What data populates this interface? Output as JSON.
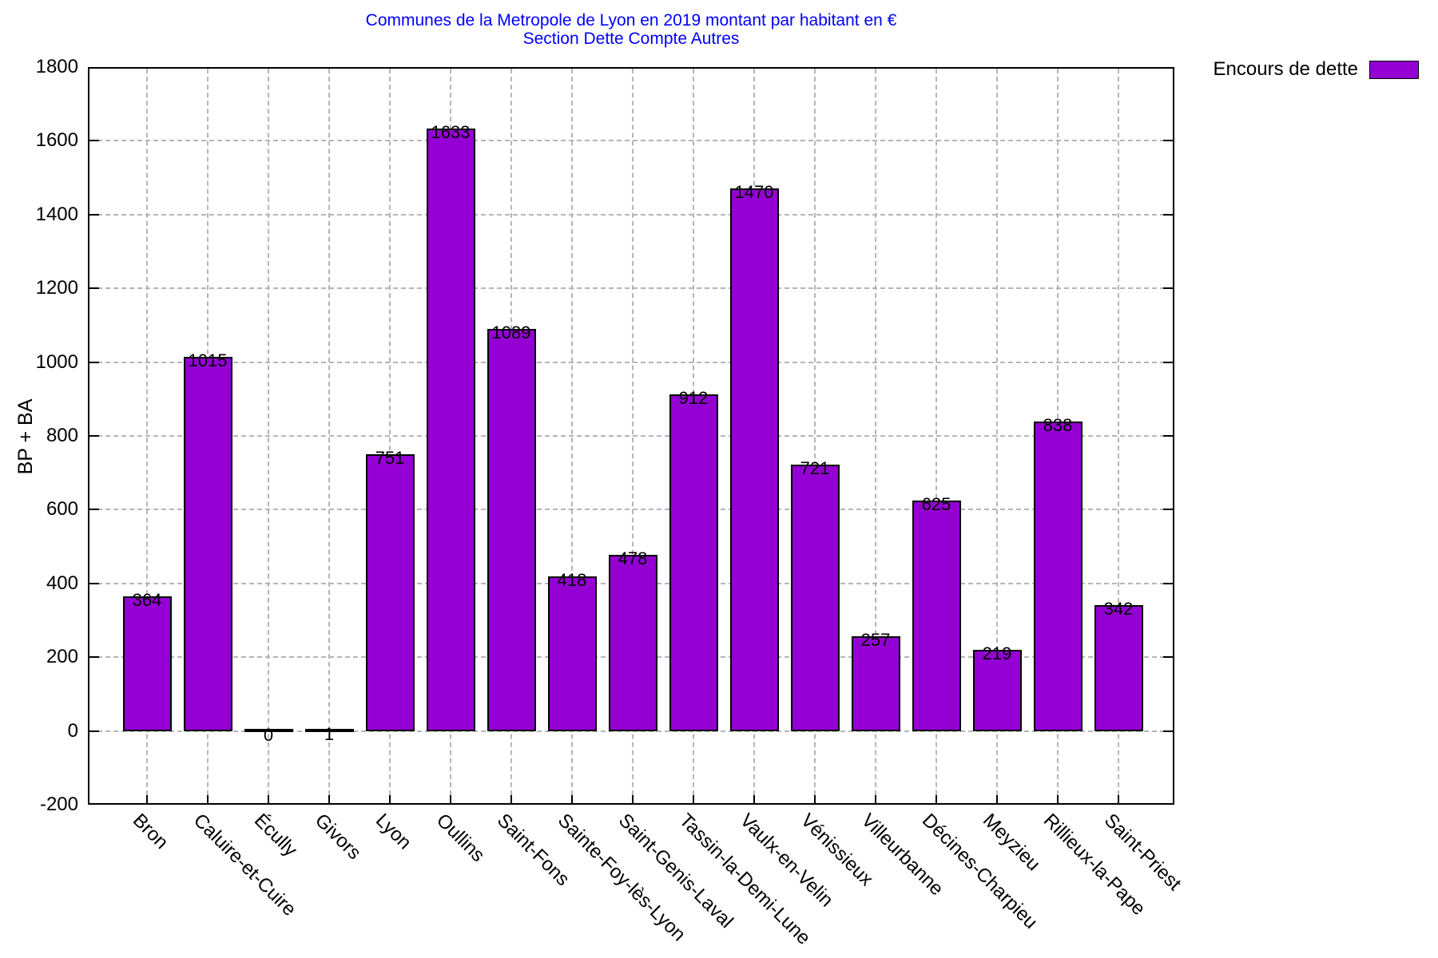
{
  "title": {
    "line1": "Communes de la Metropole de Lyon en 2019 montant par habitant en €",
    "line2": "Section Dette Compte Autres"
  },
  "legend": {
    "label": "Encours de dette"
  },
  "colors": {
    "bar_fill": "#9400D3",
    "bar_border": "#000000",
    "title_text": "#0000FF",
    "grid": "#B5B5B5",
    "axis_text": "#000000"
  },
  "chart_data": {
    "type": "bar",
    "title": "Communes de la Metropole de Lyon en 2019 montant par habitant en €",
    "subtitle": "Section Dette Compte Autres",
    "xlabel": "",
    "ylabel": "BP + BA",
    "ylim": [
      -200,
      1800
    ],
    "ytick_step": 200,
    "yticks": [
      -200,
      0,
      200,
      400,
      600,
      800,
      1000,
      1200,
      1400,
      1600,
      1800
    ],
    "grid": true,
    "legend": {
      "label": "Encours de dette",
      "position": "top-right"
    },
    "bar_color": "#9400D3",
    "categories": [
      "Bron",
      "Caluire-et-Cuire",
      "Écully",
      "Givors",
      "Lyon",
      "Oullins",
      "Saint-Fons",
      "Sainte-Foy-lès-Lyon",
      "Saint-Genis-Laval",
      "Tassin-la-Demi-Lune",
      "Vaulx-en-Velin",
      "Vénissieux",
      "Villeurbanne",
      "Décines-Charpieu",
      "Meyzieu",
      "Rillieux-la-Pape",
      "Saint-Priest"
    ],
    "values": [
      364,
      1015,
      0,
      1,
      751,
      1633,
      1089,
      418,
      478,
      912,
      1470,
      721,
      257,
      625,
      219,
      838,
      342
    ]
  }
}
